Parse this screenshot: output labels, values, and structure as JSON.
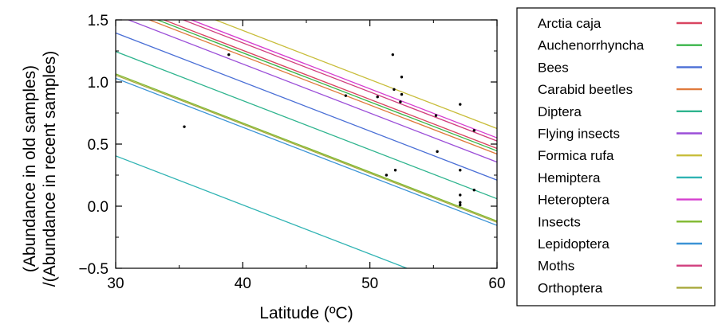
{
  "chart_data": {
    "type": "scatter",
    "title": "",
    "xlabel": "Latitude (ºC)",
    "ylabel_lines": [
      "(Abundance in old samples)",
      "/(Abundance in recent samples)"
    ],
    "xlim": [
      30,
      60
    ],
    "ylim": [
      -0.5,
      1.5
    ],
    "x_ticks": [
      30,
      40,
      50,
      60
    ],
    "x_tick_labels": [
      "30",
      "40",
      "50",
      "60"
    ],
    "y_ticks": [
      -0.5,
      0.0,
      0.5,
      1.0,
      1.5
    ],
    "y_tick_labels": [
      "−0.5",
      "0.0",
      "0.5",
      "1.0",
      "1.5"
    ],
    "grid": false,
    "legend_position": "right, outside plot",
    "fit_slope": -0.0395,
    "points": [
      {
        "x": 35.4,
        "y": 0.64
      },
      {
        "x": 38.9,
        "y": 1.22
      },
      {
        "x": 48.1,
        "y": 0.89
      },
      {
        "x": 50.6,
        "y": 0.88
      },
      {
        "x": 51.3,
        "y": 0.25
      },
      {
        "x": 51.8,
        "y": 1.22
      },
      {
        "x": 51.9,
        "y": 0.94
      },
      {
        "x": 52.0,
        "y": 0.29
      },
      {
        "x": 52.4,
        "y": 0.84
      },
      {
        "x": 52.5,
        "y": 1.04
      },
      {
        "x": 52.5,
        "y": 0.9
      },
      {
        "x": 55.2,
        "y": 0.73
      },
      {
        "x": 55.3,
        "y": 0.44
      },
      {
        "x": 57.1,
        "y": 0.82
      },
      {
        "x": 57.1,
        "y": 0.29
      },
      {
        "x": 57.1,
        "y": 0.09
      },
      {
        "x": 57.1,
        "y": 0.03
      },
      {
        "x": 57.1,
        "y": 0.01
      },
      {
        "x": 58.2,
        "y": 0.61
      },
      {
        "x": 58.2,
        "y": 0.13
      }
    ],
    "series": [
      {
        "name": "Arctia caja",
        "color": "#d94560",
        "intercept": 2.835
      },
      {
        "name": "Auchenorrhyncha",
        "color": "#3ab54a",
        "intercept": 2.815
      },
      {
        "name": "Bees",
        "color": "#4a6fd6",
        "intercept": 2.58
      },
      {
        "name": "Carabid beetles",
        "color": "#e07a3c",
        "intercept": 2.79
      },
      {
        "name": "Diptera",
        "color": "#2eb48e",
        "intercept": 2.43
      },
      {
        "name": "Flying insects",
        "color": "#9b4ed8",
        "intercept": 2.725
      },
      {
        "name": "Formica rufa",
        "color": "#c8bd3a",
        "intercept": 2.995
      },
      {
        "name": "Hemiptera",
        "color": "#2fb3b3",
        "intercept": 1.59
      },
      {
        "name": "Heteroptera",
        "color": "#d53ecf",
        "intercept": 2.92
      },
      {
        "name": "Insects",
        "color": "#7fb82e",
        "intercept": 2.25
      },
      {
        "name": "Lepidoptera",
        "color": "#3b93d6",
        "intercept": 2.215
      },
      {
        "name": "Moths",
        "color": "#d13f7e",
        "intercept": 2.895
      },
      {
        "name": "Orthoptera",
        "color": "#a7a83a",
        "intercept": 2.24
      }
    ]
  }
}
